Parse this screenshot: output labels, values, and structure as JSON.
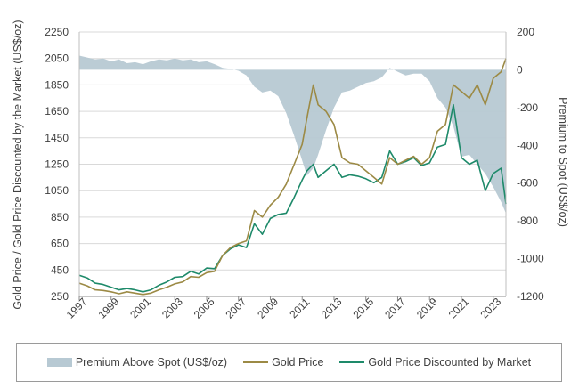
{
  "chart_data": {
    "type": "line",
    "x_ticks": [
      "1997",
      "1999",
      "2001",
      "2003",
      "2005",
      "2007",
      "2009",
      "2011",
      "2013",
      "2015",
      "2017",
      "2019",
      "2021",
      "2023"
    ],
    "xlim": [
      1997,
      2023.8
    ],
    "y_left_ticks": [
      "250",
      "450",
      "650",
      "850",
      "1050",
      "1250",
      "1450",
      "1650",
      "1850",
      "2050",
      "2250"
    ],
    "ylim_left": [
      250,
      2250
    ],
    "y_right_ticks": [
      "200",
      "0",
      "-200",
      "-400",
      "-600",
      "-800",
      "-1000",
      "-1200"
    ],
    "ylim_right": [
      -1200,
      200
    ],
    "ylabel_left": "Gold Price / Gold Price Discounted by the Market (US$/oz)",
    "ylabel_right": "Premium to Spot (US$/oz)",
    "legend_position": "bottom",
    "grid": "horizontal",
    "series": [
      {
        "name": "Premium Above Spot (US$/oz)",
        "axis": "right",
        "style": "area",
        "color": "#b7c9d3",
        "x": [
          1997,
          1997.5,
          1998,
          1998.5,
          1999,
          1999.5,
          2000,
          2000.5,
          2001,
          2001.5,
          2002,
          2002.5,
          2003,
          2003.5,
          2004,
          2004.5,
          2005,
          2005.5,
          2006,
          2006.5,
          2007,
          2007.5,
          2008,
          2008.5,
          2009,
          2009.5,
          2010,
          2010.5,
          2011,
          2011.3,
          2011.7,
          2012,
          2012.5,
          2013,
          2013.5,
          2014,
          2014.5,
          2015,
          2015.5,
          2016,
          2016.5,
          2017,
          2017.5,
          2018,
          2018.5,
          2019,
          2019.5,
          2020,
          2020.5,
          2021,
          2021.5,
          2022,
          2022.5,
          2023,
          2023.5,
          2023.8
        ],
        "values": [
          75,
          65,
          55,
          60,
          45,
          55,
          35,
          40,
          30,
          45,
          55,
          50,
          60,
          50,
          55,
          40,
          45,
          30,
          10,
          5,
          -5,
          -30,
          -90,
          -120,
          -110,
          -140,
          -230,
          -350,
          -480,
          -560,
          -520,
          -450,
          -320,
          -200,
          -120,
          -110,
          -90,
          -70,
          -60,
          -40,
          10,
          -10,
          -30,
          -20,
          -20,
          -60,
          -150,
          -200,
          -300,
          -460,
          -450,
          -500,
          -550,
          -620,
          -700,
          -760
        ]
      },
      {
        "name": "Gold Price",
        "axis": "left",
        "style": "line",
        "color": "#9c8a45",
        "x": [
          1997,
          1997.5,
          1998,
          1998.5,
          1999,
          1999.5,
          2000,
          2000.5,
          2001,
          2001.5,
          2002,
          2002.5,
          2003,
          2003.5,
          2004,
          2004.5,
          2005,
          2005.5,
          2006,
          2006.5,
          2007,
          2007.5,
          2008,
          2008.5,
          2009,
          2009.5,
          2010,
          2010.5,
          2011,
          2011.3,
          2011.7,
          2012,
          2012.5,
          2013,
          2013.5,
          2014,
          2014.5,
          2015,
          2015.5,
          2016,
          2016.5,
          2017,
          2017.5,
          2018,
          2018.5,
          2019,
          2019.5,
          2020,
          2020.5,
          2021,
          2021.5,
          2022,
          2022.5,
          2023,
          2023.5,
          2023.8
        ],
        "values": [
          350,
          330,
          300,
          295,
          285,
          270,
          285,
          275,
          265,
          275,
          300,
          320,
          345,
          360,
          400,
          395,
          430,
          440,
          560,
          620,
          650,
          670,
          900,
          850,
          940,
          1000,
          1100,
          1250,
          1400,
          1600,
          1850,
          1700,
          1650,
          1550,
          1300,
          1260,
          1250,
          1200,
          1150,
          1100,
          1300,
          1250,
          1280,
          1310,
          1250,
          1300,
          1500,
          1550,
          1850,
          1800,
          1750,
          1850,
          1700,
          1900,
          1950,
          2050
        ]
      },
      {
        "name": "Gold Price Discounted by Market",
        "axis": "left",
        "style": "line",
        "color": "#1e8a6a",
        "x": [
          1997,
          1997.5,
          1998,
          1998.5,
          1999,
          1999.5,
          2000,
          2000.5,
          2001,
          2001.5,
          2002,
          2002.5,
          2003,
          2003.5,
          2004,
          2004.5,
          2005,
          2005.5,
          2006,
          2006.5,
          2007,
          2007.5,
          2008,
          2008.5,
          2009,
          2009.5,
          2010,
          2010.5,
          2011,
          2011.3,
          2011.7,
          2012,
          2012.5,
          2013,
          2013.5,
          2014,
          2014.5,
          2015,
          2015.5,
          2016,
          2016.5,
          2017,
          2017.5,
          2018,
          2018.5,
          2019,
          2019.5,
          2020,
          2020.5,
          2021,
          2021.5,
          2022,
          2022.5,
          2023,
          2023.5,
          2023.8
        ],
        "values": [
          410,
          390,
          350,
          340,
          320,
          300,
          310,
          300,
          285,
          300,
          335,
          360,
          395,
          400,
          440,
          420,
          465,
          460,
          560,
          610,
          640,
          620,
          800,
          720,
          840,
          870,
          880,
          1000,
          1130,
          1200,
          1250,
          1150,
          1200,
          1250,
          1150,
          1170,
          1160,
          1140,
          1110,
          1150,
          1350,
          1250,
          1270,
          1300,
          1240,
          1260,
          1380,
          1400,
          1700,
          1300,
          1250,
          1280,
          1050,
          1180,
          1220,
          950
        ]
      }
    ]
  }
}
